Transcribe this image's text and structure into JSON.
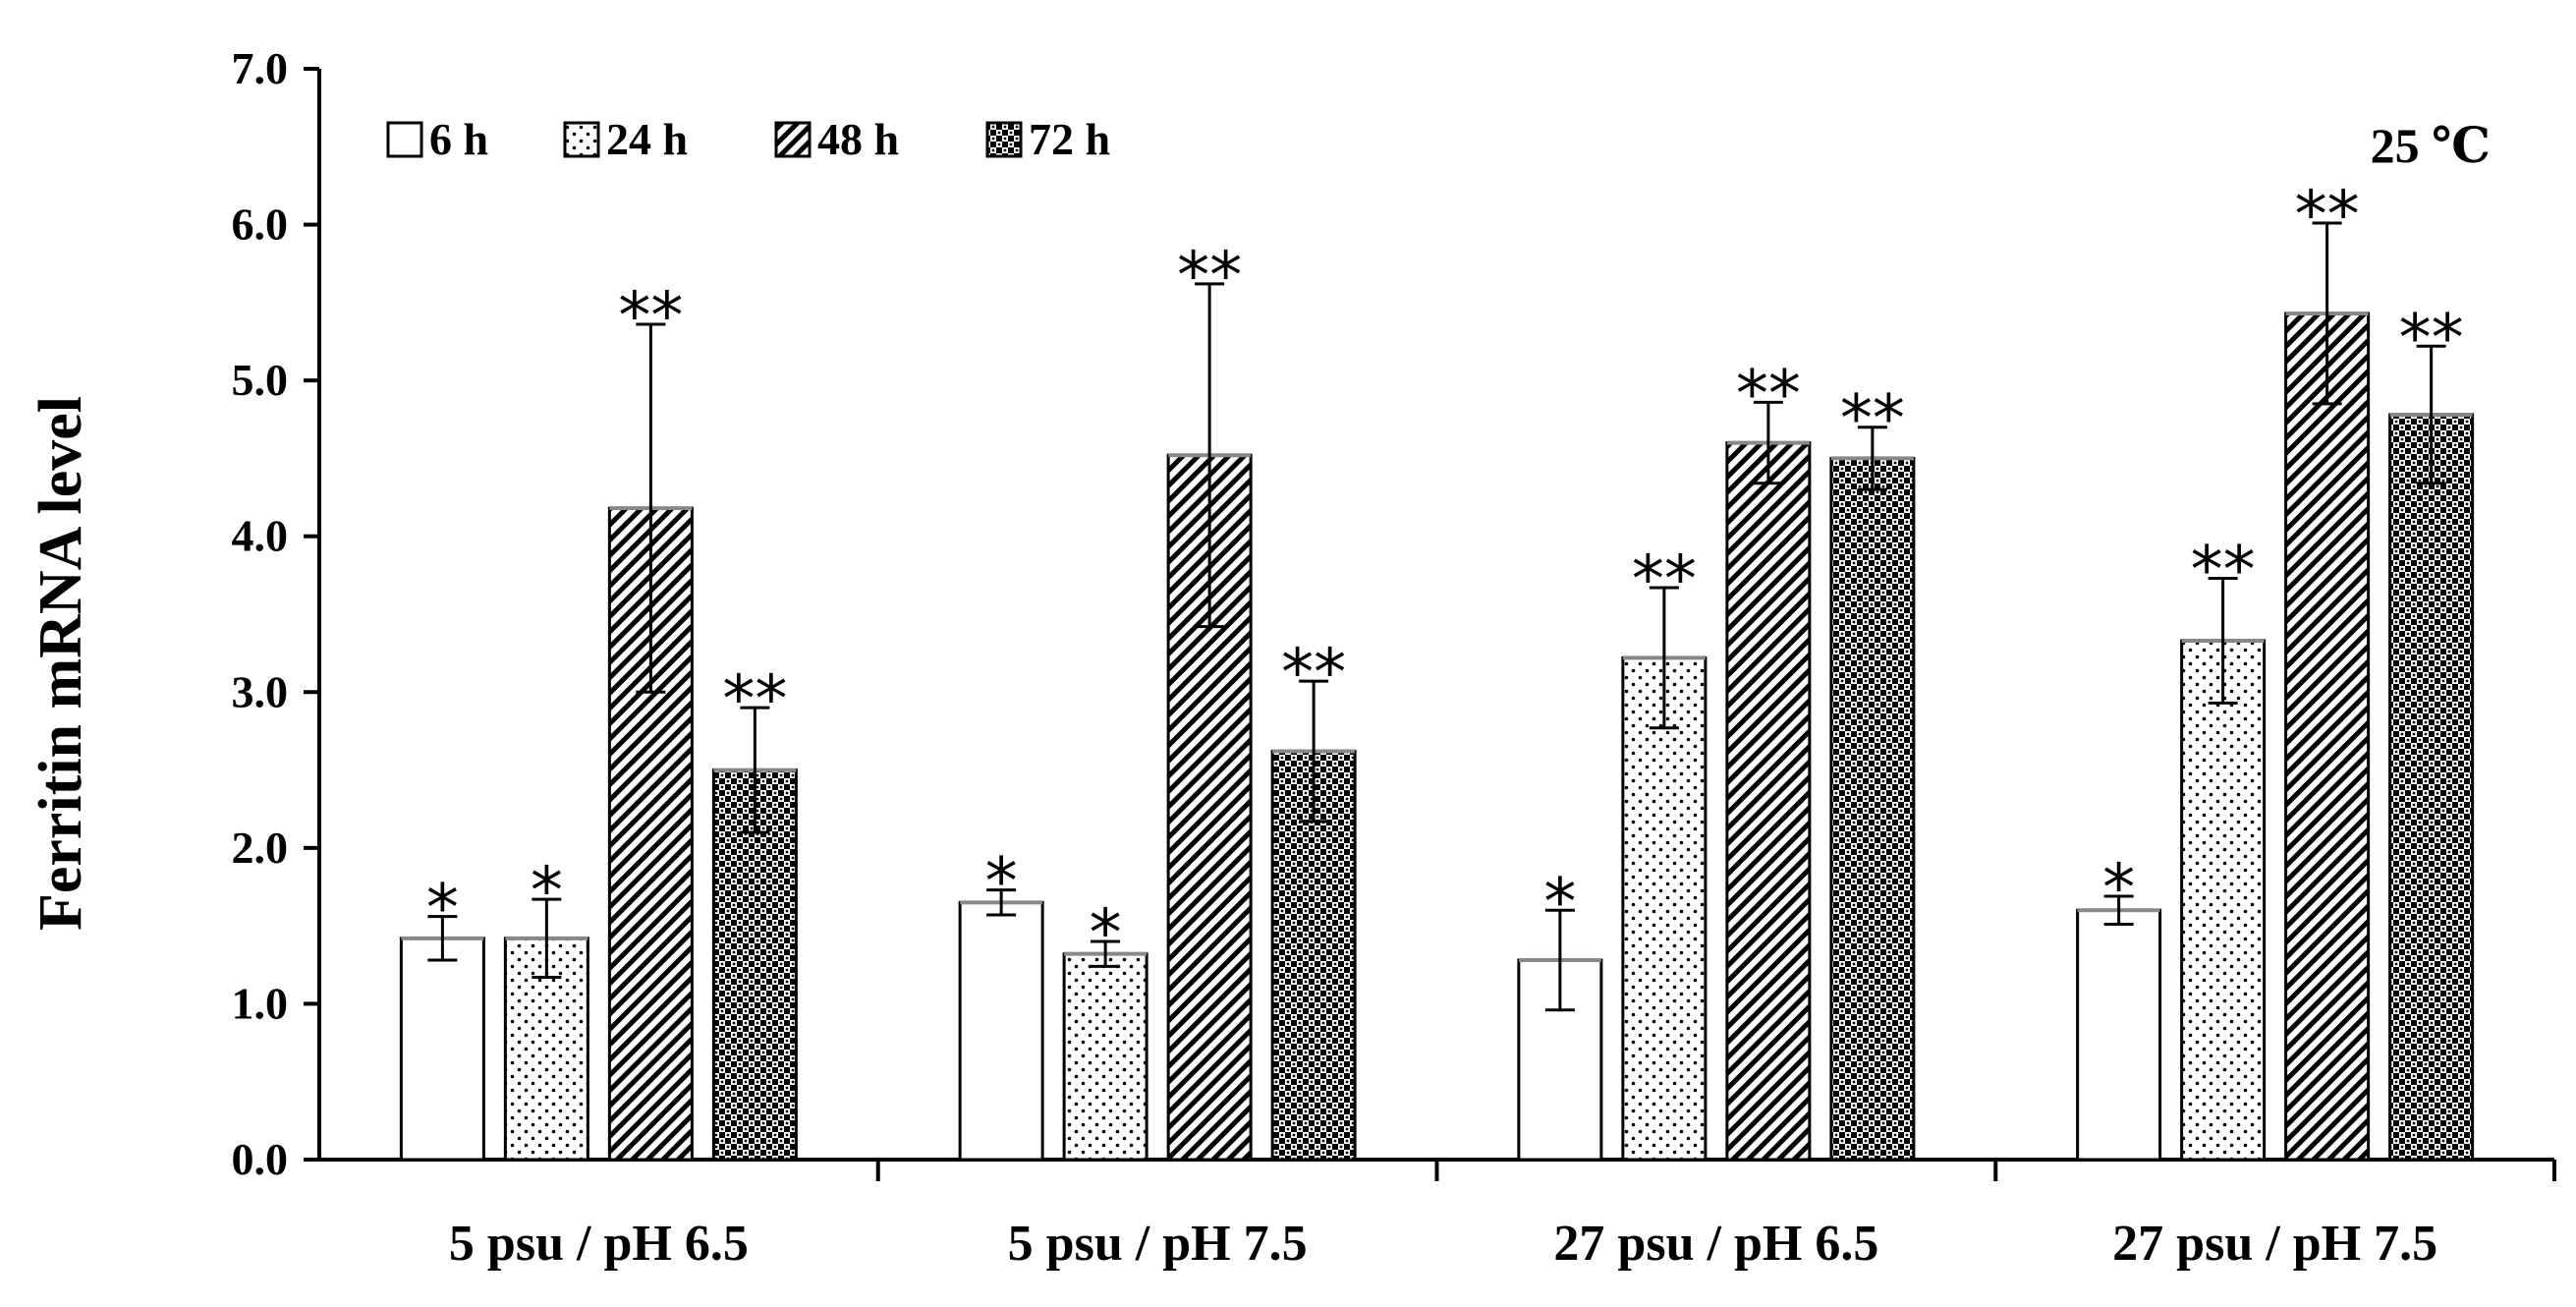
{
  "chart_data": {
    "type": "bar",
    "title": "",
    "xlabel": "",
    "ylabel": "Ferritin mRNA level",
    "ylim": [
      0,
      7
    ],
    "yticks": [
      "0.0",
      "1.0",
      "2.0",
      "3.0",
      "4.0",
      "5.0",
      "6.0",
      "7.0"
    ],
    "grid": false,
    "legend_position": "top-left",
    "annotation": "25 ℃",
    "categories": [
      "5 psu / pH 6.5",
      "5 psu / pH 7.5",
      "27 psu / pH 6.5",
      "27 psu / pH 7.5"
    ],
    "series": [
      {
        "name": "6 h",
        "pattern": "open",
        "values": [
          1.42,
          1.65,
          1.28,
          1.6
        ],
        "errors": [
          0.14,
          0.08,
          0.32,
          0.09
        ],
        "significance": [
          "*",
          "*",
          "*",
          "*"
        ]
      },
      {
        "name": "24 h",
        "pattern": "dots",
        "values": [
          1.42,
          1.32,
          3.22,
          3.33
        ],
        "errors": [
          0.25,
          0.08,
          0.45,
          0.4
        ],
        "significance": [
          "*",
          "*",
          "**",
          "**"
        ]
      },
      {
        "name": "48 h",
        "pattern": "diagonal",
        "values": [
          4.18,
          4.52,
          4.6,
          5.43
        ],
        "errors": [
          1.18,
          1.1,
          0.26,
          0.58
        ],
        "significance": [
          "**",
          "**",
          "**",
          "**"
        ]
      },
      {
        "name": "72 h",
        "pattern": "checker",
        "values": [
          2.5,
          2.62,
          4.5,
          4.78
        ],
        "errors": [
          0.4,
          0.45,
          0.2,
          0.44
        ],
        "significance": [
          "**",
          "**",
          "**",
          "**"
        ]
      }
    ]
  }
}
